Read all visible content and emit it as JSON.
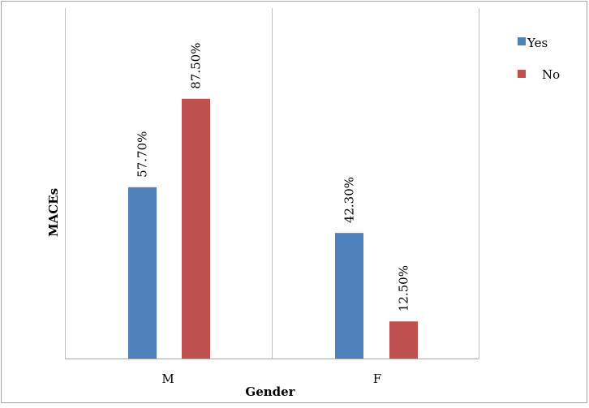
{
  "chart_data": {
    "type": "bar",
    "categories": [
      "M",
      "F"
    ],
    "series": [
      {
        "name": "Yes",
        "color": "#4F81BD",
        "values": [
          57.7,
          42.3
        ],
        "labels": [
          "57.70%",
          "42.30%"
        ]
      },
      {
        "name": "No",
        "color": "#C0504D",
        "values": [
          87.5,
          12.5
        ],
        "labels": [
          "87.50%",
          "12.50%"
        ]
      }
    ],
    "xlabel": "Gender",
    "ylabel": "MACEs",
    "ylim": [
      0,
      100
    ],
    "grid": false,
    "legend": "top-right"
  }
}
